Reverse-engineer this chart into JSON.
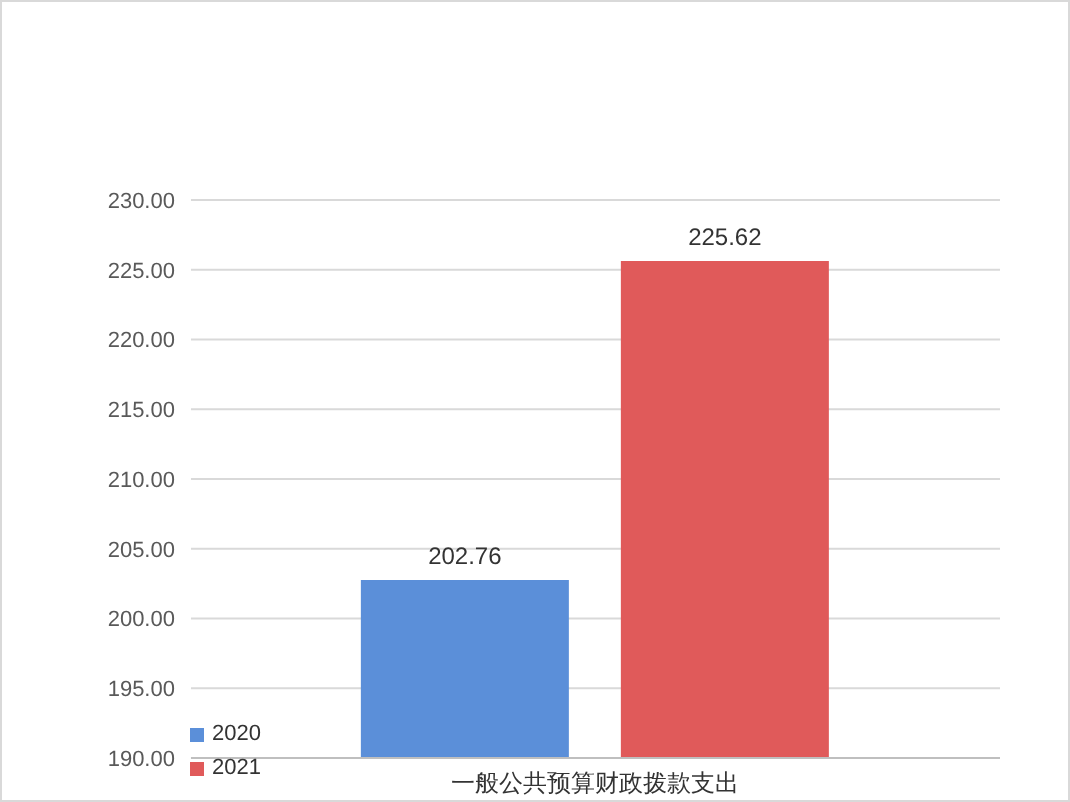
{
  "chart_data": {
    "type": "bar",
    "categories": [
      "一般公共预算财政拨款支出"
    ],
    "series": [
      {
        "name": "2020",
        "color": "#5b8fd9",
        "values": [
          202.76
        ]
      },
      {
        "name": "2021",
        "color": "#e05a5a",
        "values": [
          225.62
        ]
      }
    ],
    "ylim": [
      190,
      230
    ],
    "yticks": [
      {
        "value": 190,
        "label": "190.00"
      },
      {
        "value": 195,
        "label": "195.00"
      },
      {
        "value": 200,
        "label": "200.00"
      },
      {
        "value": 205,
        "label": "205.00"
      },
      {
        "value": 210,
        "label": "210.00"
      },
      {
        "value": 215,
        "label": "215.00"
      },
      {
        "value": 220,
        "label": "220.00"
      },
      {
        "value": 225,
        "label": "225.00"
      },
      {
        "value": 230,
        "label": "230.00"
      }
    ],
    "grid": "y",
    "legend": "bottom left",
    "data_labels": true
  }
}
